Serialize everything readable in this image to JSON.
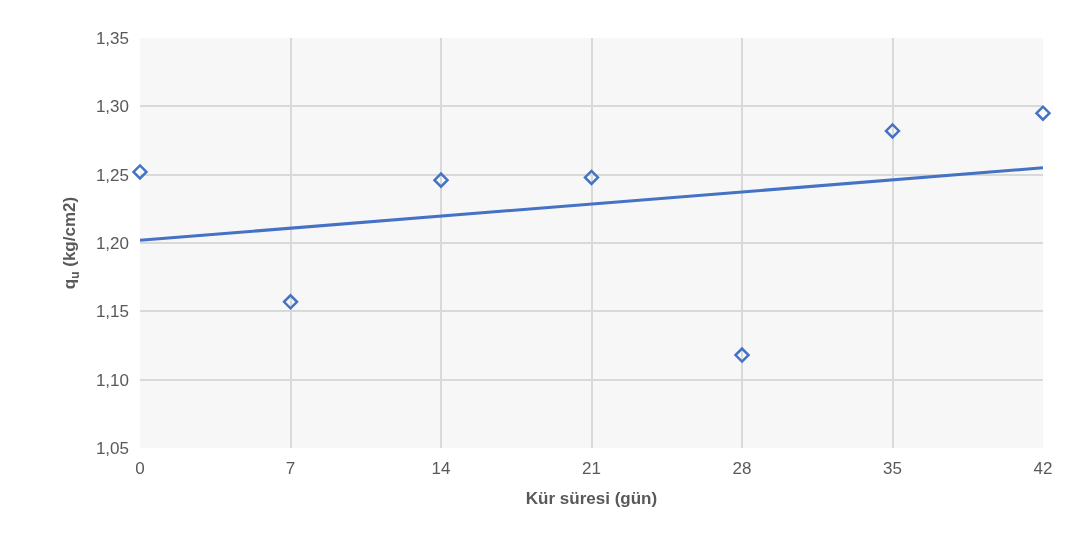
{
  "chart_data": {
    "type": "scatter",
    "xlabel": "Kür süresi (gün)",
    "ylabel": "q$_{u}$ (kg/cm2)",
    "xlim": [
      0,
      42
    ],
    "xticks": [
      0,
      7,
      14,
      21,
      28,
      35,
      42
    ],
    "ylim": [
      1.05,
      1.35
    ],
    "yticks": [
      {
        "value": 1.05,
        "label": "1,05"
      },
      {
        "value": 1.1,
        "label": "1,10"
      },
      {
        "value": 1.15,
        "label": "1,15"
      },
      {
        "value": 1.2,
        "label": "1,20"
      },
      {
        "value": 1.25,
        "label": "1,25"
      },
      {
        "value": 1.3,
        "label": "1,30"
      },
      {
        "value": 1.35,
        "label": "1,35"
      }
    ],
    "grid": true,
    "series": [
      {
        "marker": "diamond",
        "color": "#4472c4",
        "x": [
          0,
          7,
          14,
          21,
          28,
          35,
          42
        ],
        "values": [
          1.252,
          1.157,
          1.246,
          1.248,
          1.118,
          1.282,
          1.295
        ]
      },
      {
        "type": "line",
        "color": "#4472c4",
        "x": [
          0,
          42
        ],
        "values": [
          1.202,
          1.255
        ]
      }
    ]
  }
}
